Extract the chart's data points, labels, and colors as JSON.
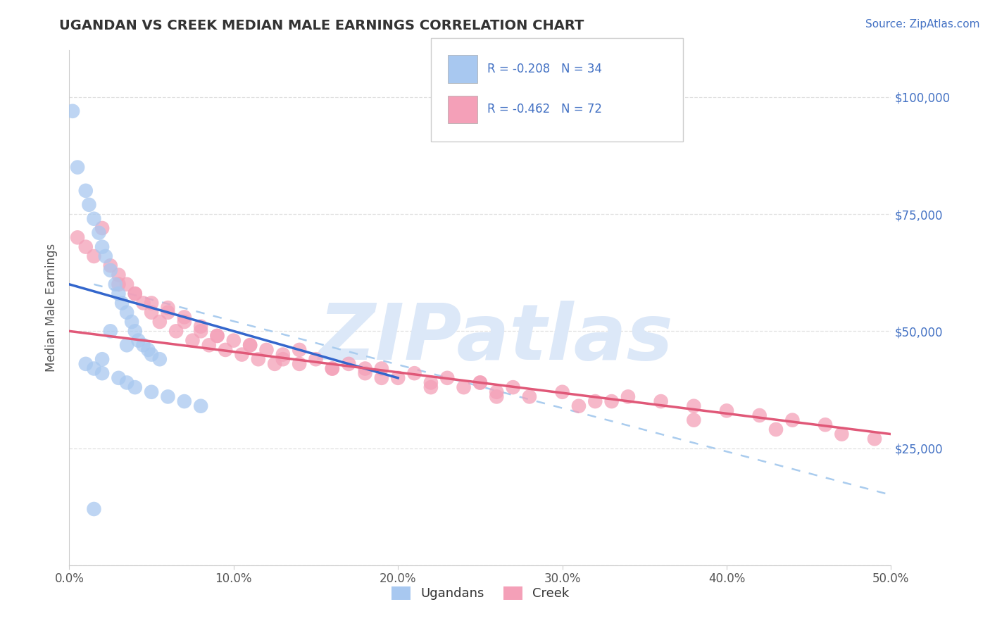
{
  "title": "UGANDAN VS CREEK MEDIAN MALE EARNINGS CORRELATION CHART",
  "source_text": "Source: ZipAtlas.com",
  "ylabel": "Median Male Earnings",
  "xlim": [
    0.0,
    50.0
  ],
  "ylim": [
    0,
    110000
  ],
  "yticks": [
    0,
    25000,
    50000,
    75000,
    100000
  ],
  "ytick_labels_right": [
    "",
    "$25,000",
    "$50,000",
    "$75,000",
    "$100,000"
  ],
  "xticks": [
    0.0,
    10.0,
    20.0,
    30.0,
    40.0,
    50.0
  ],
  "xtick_labels": [
    "0.0%",
    "10.0%",
    "20.0%",
    "30.0%",
    "40.0%",
    "50.0%"
  ],
  "legend_r_ugandan": "R = -0.208",
  "legend_n_ugandan": "N = 34",
  "legend_r_creek": "R = -0.462",
  "legend_n_creek": "N = 72",
  "ugandan_color": "#a8c8f0",
  "creek_color": "#f4a0b8",
  "blue_line_color": "#3366cc",
  "pink_line_color": "#e05878",
  "dashed_line_color": "#aaccee",
  "watermark_color": "#dce8f8",
  "watermark_text": "ZIPatlas",
  "background_color": "#ffffff",
  "title_color": "#333333",
  "axis_label_color": "#4472c4",
  "ylabel_color": "#555555",
  "grid_color": "#e0e0e0",
  "ugandan_x": [
    0.2,
    0.5,
    1.0,
    1.2,
    1.5,
    1.8,
    2.0,
    2.2,
    2.5,
    2.8,
    3.0,
    3.2,
    3.5,
    3.8,
    4.0,
    4.2,
    4.5,
    4.8,
    5.0,
    5.5,
    1.0,
    1.5,
    2.0,
    3.0,
    3.5,
    4.0,
    5.0,
    6.0,
    7.0,
    8.0,
    2.5,
    3.5,
    2.0,
    1.5
  ],
  "ugandan_y": [
    97000,
    85000,
    80000,
    77000,
    74000,
    71000,
    68000,
    66000,
    63000,
    60000,
    58000,
    56000,
    54000,
    52000,
    50000,
    48000,
    47000,
    46000,
    45000,
    44000,
    43000,
    42000,
    41000,
    40000,
    39000,
    38000,
    37000,
    36000,
    35000,
    34000,
    50000,
    47000,
    44000,
    12000
  ],
  "creek_x": [
    0.5,
    1.0,
    1.5,
    2.0,
    2.5,
    3.0,
    3.5,
    4.0,
    4.5,
    5.0,
    5.5,
    6.0,
    6.5,
    7.0,
    7.5,
    8.0,
    8.5,
    9.0,
    9.5,
    10.0,
    10.5,
    11.0,
    11.5,
    12.0,
    12.5,
    13.0,
    14.0,
    15.0,
    16.0,
    17.0,
    18.0,
    19.0,
    20.0,
    21.0,
    22.0,
    23.0,
    24.0,
    25.0,
    26.0,
    27.0,
    28.0,
    30.0,
    32.0,
    34.0,
    36.0,
    38.0,
    40.0,
    42.0,
    44.0,
    46.0,
    3.0,
    5.0,
    7.0,
    9.0,
    11.0,
    13.0,
    16.0,
    19.0,
    22.0,
    26.0,
    31.0,
    38.0,
    43.0,
    47.0,
    49.0,
    4.0,
    6.0,
    8.0,
    14.0,
    18.0,
    25.0,
    33.0
  ],
  "creek_y": [
    70000,
    68000,
    66000,
    72000,
    64000,
    62000,
    60000,
    58000,
    56000,
    54000,
    52000,
    55000,
    50000,
    53000,
    48000,
    51000,
    47000,
    49000,
    46000,
    48000,
    45000,
    47000,
    44000,
    46000,
    43000,
    45000,
    43000,
    44000,
    42000,
    43000,
    41000,
    42000,
    40000,
    41000,
    39000,
    40000,
    38000,
    39000,
    37000,
    38000,
    36000,
    37000,
    35000,
    36000,
    35000,
    34000,
    33000,
    32000,
    31000,
    30000,
    60000,
    56000,
    52000,
    49000,
    47000,
    44000,
    42000,
    40000,
    38000,
    36000,
    34000,
    31000,
    29000,
    28000,
    27000,
    58000,
    54000,
    50000,
    46000,
    42000,
    39000,
    35000
  ],
  "ugandan_line_x": [
    0.0,
    20.0
  ],
  "ugandan_line_y": [
    60000,
    40000
  ],
  "creek_line_x": [
    0.0,
    50.0
  ],
  "creek_line_y": [
    50000,
    28000
  ],
  "diag_line_x": [
    1.5,
    50.0
  ],
  "diag_line_y": [
    60000,
    15000
  ]
}
